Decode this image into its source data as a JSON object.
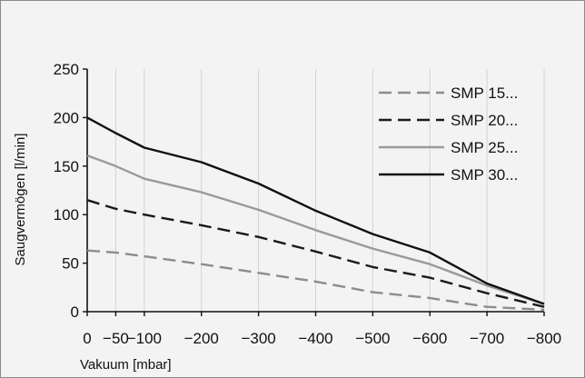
{
  "chart_data": {
    "type": "line",
    "title": "",
    "xlabel": "Vakuum [mbar]",
    "ylabel": "Saugvermögen [l/min]",
    "xlim": [
      0,
      -800
    ],
    "ylim": [
      0,
      250
    ],
    "x_ticks": [
      0,
      -50,
      -100,
      -200,
      -300,
      -400,
      -500,
      -600,
      -700,
      -800
    ],
    "x_tick_labels": [
      "0",
      "−50",
      "−100",
      "−200",
      "−300",
      "−400",
      "−500",
      "−600",
      "−700",
      "−800"
    ],
    "y_ticks": [
      0,
      50,
      100,
      150,
      200,
      250
    ],
    "y_tick_labels": [
      "0",
      "50",
      "100",
      "150",
      "200",
      "250"
    ],
    "grid": "vertical",
    "legend_position": "top-right",
    "series": [
      {
        "name": "SMP 15...",
        "color": "#8c8c8c",
        "dash": "dashed",
        "points": [
          [
            0,
            63
          ],
          [
            -50,
            61
          ],
          [
            -100,
            57
          ],
          [
            -200,
            49
          ],
          [
            -300,
            40
          ],
          [
            -400,
            31
          ],
          [
            -500,
            20
          ],
          [
            -600,
            14
          ],
          [
            -700,
            5
          ],
          [
            -800,
            2
          ]
        ]
      },
      {
        "name": "SMP 20...",
        "color": "#1a1a1a",
        "dash": "dashed",
        "points": [
          [
            0,
            115
          ],
          [
            -50,
            106
          ],
          [
            -100,
            100
          ],
          [
            -200,
            89
          ],
          [
            -300,
            77
          ],
          [
            -400,
            62
          ],
          [
            -500,
            46
          ],
          [
            -600,
            35
          ],
          [
            -700,
            19
          ],
          [
            -800,
            5
          ]
        ]
      },
      {
        "name": "SMP 25...",
        "color": "#9a9a9a",
        "dash": "solid",
        "points": [
          [
            0,
            161
          ],
          [
            -50,
            150
          ],
          [
            -100,
            137
          ],
          [
            -200,
            123
          ],
          [
            -300,
            105
          ],
          [
            -400,
            84
          ],
          [
            -500,
            65
          ],
          [
            -600,
            49
          ],
          [
            -700,
            27
          ],
          [
            -800,
            8
          ]
        ]
      },
      {
        "name": "SMP 30...",
        "color": "#111111",
        "dash": "solid",
        "points": [
          [
            0,
            200
          ],
          [
            -50,
            184
          ],
          [
            -100,
            169
          ],
          [
            -200,
            154
          ],
          [
            -300,
            132
          ],
          [
            -400,
            104
          ],
          [
            -500,
            80
          ],
          [
            -600,
            61
          ],
          [
            -700,
            29
          ],
          [
            -800,
            8
          ]
        ]
      }
    ]
  }
}
